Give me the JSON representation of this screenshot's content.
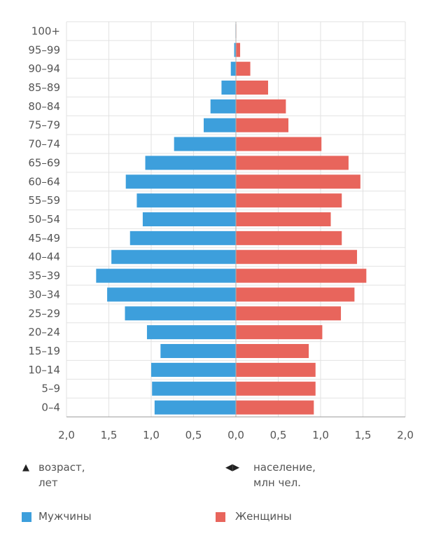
{
  "chart_data": {
    "type": "bar",
    "orientation": "horizontal-pyramid",
    "categories": [
      "100+",
      "95–99",
      "90–94",
      "85–89",
      "80–84",
      "75–79",
      "70–74",
      "65–69",
      "60–64",
      "55–59",
      "50–54",
      "45–49",
      "40–44",
      "35–39",
      "30–34",
      "25–29",
      "20–24",
      "15–19",
      "10–14",
      "5–9",
      "0–4"
    ],
    "series": [
      {
        "name": "Мужчины",
        "side": "left",
        "color": "#3d9fdc",
        "values": [
          0.005,
          0.02,
          0.06,
          0.17,
          0.3,
          0.38,
          0.73,
          1.07,
          1.3,
          1.17,
          1.1,
          1.25,
          1.47,
          1.65,
          1.52,
          1.31,
          1.05,
          0.89,
          1.0,
          0.99,
          0.96
        ]
      },
      {
        "name": "Женщины",
        "side": "right",
        "color": "#e8655c",
        "values": [
          0.005,
          0.05,
          0.17,
          0.38,
          0.59,
          0.62,
          1.01,
          1.33,
          1.47,
          1.25,
          1.12,
          1.25,
          1.43,
          1.54,
          1.4,
          1.24,
          1.02,
          0.86,
          0.94,
          0.94,
          0.92
        ]
      }
    ],
    "x_ticks": [
      "2,0",
      "1,5",
      "1,0",
      "0,5",
      "0,0",
      "0,5",
      "1,0",
      "1,5",
      "2,0"
    ],
    "xlim": [
      -2.0,
      2.0
    ],
    "grid": true
  },
  "legend": {
    "age_symbol": "▲",
    "age_line1": "возраст,",
    "age_line2": "лет",
    "pop_symbol": "◀ ▶",
    "pop_line1": "население,",
    "pop_line2": "млн чел.",
    "men_label": "Мужчины",
    "women_label": "Женщины",
    "men_color": "#3d9fdc",
    "women_color": "#e8655c"
  }
}
